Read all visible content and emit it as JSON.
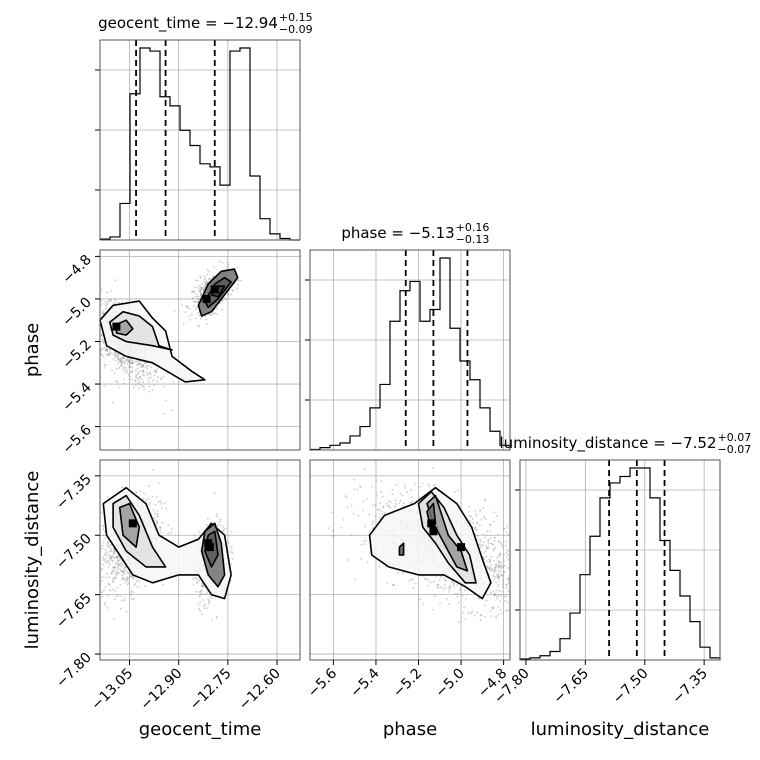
{
  "chart_data": {
    "type": "corner",
    "parameters": [
      "geocent_time",
      "phase",
      "luminosity_distance"
    ],
    "ranges": {
      "geocent_time": [
        -13.14,
        -12.53
      ],
      "phase": [
        -5.71,
        -4.77
      ],
      "luminosity_distance": [
        -7.815,
        -7.31
      ]
    },
    "ticks": {
      "geocent_time": [
        "−13.05",
        "−12.90",
        "−12.75",
        "−12.60"
      ],
      "phase": [
        "−5.6",
        "−5.4",
        "−5.2",
        "−5.0",
        "−4.8"
      ],
      "phase_y": [
        "−5.6",
        "−5.4",
        "−5.2",
        "−5.0",
        "−4.8"
      ],
      "luminosity_distance": [
        "−7.80",
        "−7.65",
        "−7.50",
        "−7.35"
      ]
    },
    "titles": [
      {
        "param": "geocent_time",
        "main": "geocent_time = −12.94",
        "sup": "+0.15",
        "sub": "−0.09"
      },
      {
        "param": "phase",
        "main": "phase = −5.13",
        "sup": "+0.16",
        "sub": "−0.13"
      },
      {
        "param": "luminosity_distance",
        "main": "luminosity_distance = −7.52",
        "sup": "+0.07",
        "sub": "−0.07"
      }
    ],
    "quantiles": {
      "geocent_time": [
        -13.03,
        -12.94,
        -12.79
      ],
      "phase": [
        -5.26,
        -5.13,
        -4.97
      ],
      "luminosity_distance": [
        -7.59,
        -7.52,
        -7.45
      ]
    },
    "histograms": {
      "geocent_time": {
        "start": -13.14,
        "step": 0.0305,
        "counts": [
          0.3,
          1,
          12,
          48,
          63,
          62,
          47,
          44,
          36,
          31,
          25,
          24,
          18,
          62,
          63,
          21,
          7,
          2,
          0.5,
          0
        ]
      },
      "phase": {
        "start": -5.71,
        "step": 0.047,
        "counts": [
          0.2,
          1,
          2,
          3,
          6,
          10,
          18,
          28,
          55,
          68,
          72,
          55,
          60,
          82,
          52,
          38,
          30,
          18,
          8,
          2
        ]
      },
      "luminosity_distance": {
        "start": -7.815,
        "step": 0.02525,
        "counts": [
          0.5,
          1,
          2,
          4,
          10,
          22,
          40,
          58,
          76,
          83,
          86,
          90,
          90,
          76,
          56,
          42,
          30,
          18,
          6,
          1
        ]
      }
    },
    "grid": true,
    "colors": {
      "line": "#000000",
      "grid": "#b0b0b0",
      "scatter": "#8c8c8c"
    }
  }
}
